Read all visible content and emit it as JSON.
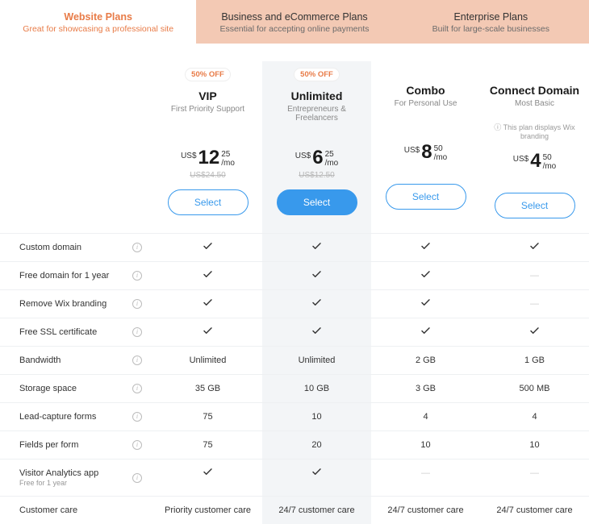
{
  "tabs": [
    {
      "title": "Website Plans",
      "sub": "Great for showcasing a professional site",
      "active": true
    },
    {
      "title": "Business and eCommerce Plans",
      "sub": "Essential for accepting online payments",
      "active": false
    },
    {
      "title": "Enterprise Plans",
      "sub": "Built for large-scale businesses",
      "active": false
    }
  ],
  "colors": {
    "accent": "#e87b47",
    "primary_btn": "#3899ec",
    "highlight_bg": "#f3f5f7",
    "tab_bg": "#f3c9b4"
  },
  "plans": [
    {
      "key": "vip",
      "badge": "50% OFF",
      "name": "VIP",
      "sub": "First Priority Support",
      "note": "",
      "currency": "US$",
      "amount": "12",
      "cents": "25",
      "per": "/mo",
      "old": "US$24.50",
      "select": "Select",
      "highlight": false,
      "filled": false
    },
    {
      "key": "unlimited",
      "badge": "50% OFF",
      "name": "Unlimited",
      "sub": "Entrepreneurs & Freelancers",
      "note": "",
      "currency": "US$",
      "amount": "6",
      "cents": "25",
      "per": "/mo",
      "old": "US$12.50",
      "select": "Select",
      "highlight": true,
      "filled": true
    },
    {
      "key": "combo",
      "badge": "",
      "name": "Combo",
      "sub": "For Personal Use",
      "note": "",
      "currency": "US$",
      "amount": "8",
      "cents": "50",
      "per": "/mo",
      "old": "",
      "select": "Select",
      "highlight": false,
      "filled": false
    },
    {
      "key": "connect",
      "badge": "",
      "name": "Connect Domain",
      "sub": "Most Basic",
      "note": "ⓘ This plan displays Wix branding",
      "currency": "US$",
      "amount": "4",
      "cents": "50",
      "per": "/mo",
      "old": "",
      "select": "Select",
      "highlight": false,
      "filled": false
    }
  ],
  "features": [
    {
      "label": "Custom domain",
      "sub": "",
      "info": true,
      "vals": [
        "check",
        "check",
        "check",
        "check"
      ]
    },
    {
      "label": "Free domain for 1 year",
      "sub": "",
      "info": true,
      "vals": [
        "check",
        "check",
        "check",
        "dash"
      ]
    },
    {
      "label": "Remove Wix branding",
      "sub": "",
      "info": true,
      "vals": [
        "check",
        "check",
        "check",
        "dash"
      ]
    },
    {
      "label": "Free SSL certificate",
      "sub": "",
      "info": true,
      "vals": [
        "check",
        "check",
        "check",
        "check"
      ]
    },
    {
      "label": "Bandwidth",
      "sub": "",
      "info": true,
      "vals": [
        "Unlimited",
        "Unlimited",
        "2 GB",
        "1 GB"
      ]
    },
    {
      "label": "Storage space",
      "sub": "",
      "info": true,
      "vals": [
        "35 GB",
        "10 GB",
        "3 GB",
        "500 MB"
      ]
    },
    {
      "label": "Lead-capture forms",
      "sub": "",
      "info": true,
      "vals": [
        "75",
        "10",
        "4",
        "4"
      ]
    },
    {
      "label": "Fields per form",
      "sub": "",
      "info": true,
      "vals": [
        "75",
        "20",
        "10",
        "10"
      ]
    },
    {
      "label": "Visitor Analytics app",
      "sub": "Free for 1 year",
      "info": true,
      "vals": [
        "check",
        "check",
        "dash",
        "dash"
      ]
    },
    {
      "label": "Customer care",
      "sub": "",
      "info": false,
      "vals": [
        "Priority customer care",
        "24/7 customer care",
        "24/7 customer care",
        "24/7 customer care"
      ]
    }
  ]
}
